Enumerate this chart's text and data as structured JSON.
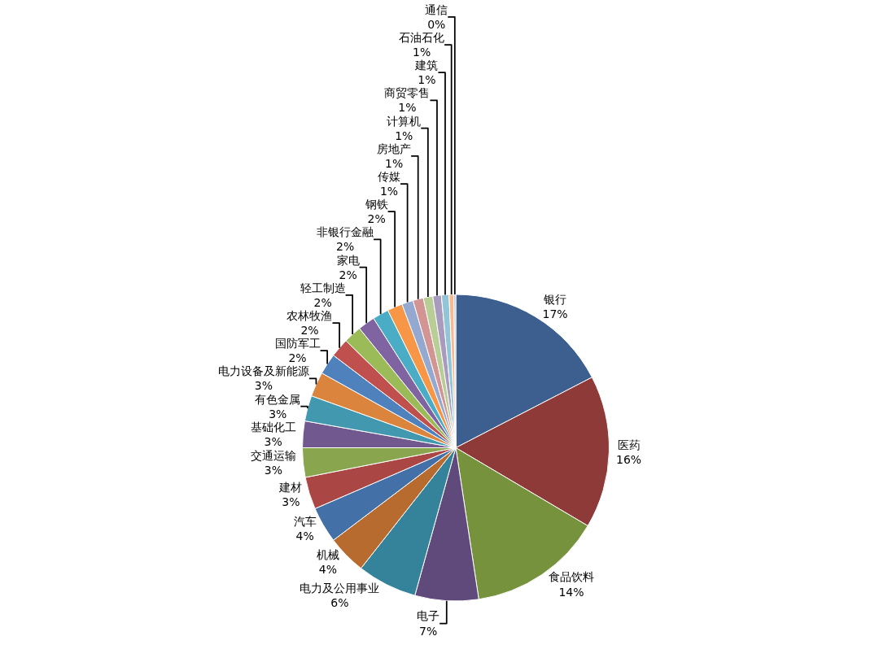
{
  "chart_data": {
    "type": "pie",
    "categories": [
      "银行",
      "医药",
      "食品饮料",
      "电子",
      "电力及公用事业",
      "机械",
      "汽车",
      "建材",
      "交通运输",
      "基础化工",
      "有色金属",
      "电力设备及新能源",
      "国防军工",
      "农林牧渔",
      "轻工制造",
      "家电",
      "非银行金融",
      "钢铁",
      "传媒",
      "房地产",
      "计算机",
      "商贸零售",
      "建筑",
      "石油石化",
      "通信"
    ],
    "values": [
      17.4,
      16.1,
      14.1,
      6.7,
      6.3,
      4.1,
      3.8,
      3.4,
      3.1,
      2.8,
      2.7,
      2.6,
      2.2,
      2.0,
      1.9,
      1.8,
      1.7,
      1.6,
      1.2,
      1.1,
      1.0,
      0.9,
      0.8,
      0.5,
      0.2
    ],
    "value_labels": [
      "17%",
      "16%",
      "14%",
      "7%",
      "6%",
      "4%",
      "4%",
      "3%",
      "3%",
      "3%",
      "3%",
      "3%",
      "2%",
      "2%",
      "2%",
      "2%",
      "2%",
      "2%",
      "1%",
      "1%",
      "1%",
      "1%",
      "1%",
      "1%",
      "0%"
    ],
    "colors": [
      "#3c5f8f",
      "#8e3a38",
      "#77923d",
      "#5f4a7b",
      "#35839a",
      "#b86b2e",
      "#4470a8",
      "#aa4744",
      "#89a54e",
      "#71588f",
      "#4198af",
      "#db843d",
      "#4f81bd",
      "#c0504d",
      "#9bbb59",
      "#8064a2",
      "#4bacc6",
      "#f79646",
      "#95a9d0",
      "#d39593",
      "#b9cd96",
      "#a99bbd",
      "#92c5d8",
      "#f9b98d",
      "#b3c4e0"
    ]
  }
}
